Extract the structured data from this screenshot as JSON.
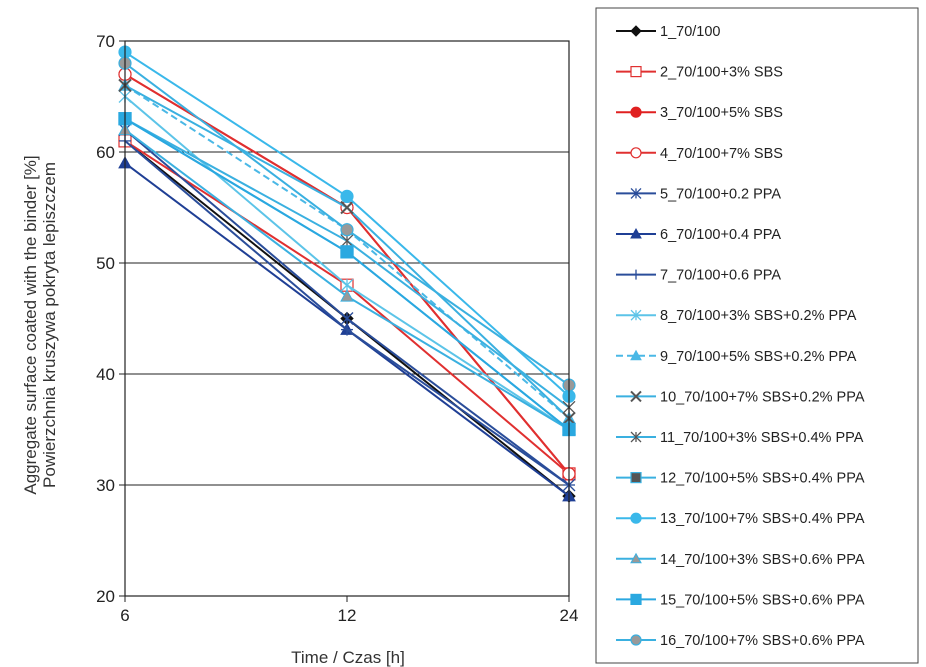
{
  "chart_data": {
    "type": "line",
    "xlabel": "Time / Czas [h]",
    "ylabel_lines": [
      "Aggregate surface coated with the binder [%]",
      "Powierzchnia kruszywa pokryta lepiszczem"
    ],
    "x": [
      6,
      12,
      24
    ],
    "x_tick_labels": [
      "6",
      "12",
      "24"
    ],
    "ylim": [
      20,
      70
    ],
    "y_ticks": [
      20,
      30,
      40,
      50,
      60,
      70
    ],
    "grid": "horizontal",
    "legend_position": "right",
    "series": [
      {
        "name": "1_70/100",
        "values": [
          61,
          45,
          29
        ],
        "color": "#111111",
        "marker": "diamond",
        "fill": "#111111",
        "dash": false
      },
      {
        "name": "2_70/100+3% SBS",
        "values": [
          61,
          48,
          31
        ],
        "color": "#e03030",
        "marker": "square",
        "fill": "#ffffff",
        "dash": false
      },
      {
        "name": "3_70/100+5% SBS",
        "values": [
          67,
          55,
          31
        ],
        "color": "#e02020",
        "marker": "circle",
        "fill": "#e02020",
        "dash": false
      },
      {
        "name": "4_70/100+7% SBS",
        "values": [
          67,
          55,
          31
        ],
        "color": "#e03030",
        "marker": "circle",
        "fill": "#ffffff",
        "dash": false
      },
      {
        "name": "5_70/100+0.2 PPA",
        "values": [
          62,
          45,
          30
        ],
        "color": "#2a4d9a",
        "marker": "asterisk",
        "fill": "#2a4d9a",
        "dash": false
      },
      {
        "name": "6_70/100+0.4 PPA",
        "values": [
          59,
          44,
          29
        ],
        "color": "#1f3f95",
        "marker": "triangle",
        "fill": "#1f3f95",
        "dash": false
      },
      {
        "name": "7_70/100+0.6 PPA",
        "values": [
          61,
          44,
          30
        ],
        "color": "#2a4d9a",
        "marker": "plus",
        "fill": "#2a4d9a",
        "dash": false
      },
      {
        "name": "8_70/100+3% SBS+0.2% PPA",
        "values": [
          65,
          48,
          35
        ],
        "color": "#5cc4e8",
        "marker": "asterisk",
        "fill": "#5cc4e8",
        "dash": false
      },
      {
        "name": "9_70/100+5% SBS+0.2% PPA",
        "values": [
          66,
          53,
          36
        ],
        "color": "#4ab8e6",
        "marker": "triangle",
        "fill": "#4ab8e6",
        "dash": true
      },
      {
        "name": "10_70/100+7% SBS+0.2% PPA",
        "values": [
          66,
          55,
          36
        ],
        "color": "#3ab0e0",
        "marker": "x",
        "fill": "#555555",
        "dash": false
      },
      {
        "name": "11_70/100+3% SBS+0.4% PPA",
        "values": [
          63,
          52,
          37
        ],
        "color": "#3ab0e0",
        "marker": "asterisk",
        "fill": "#555555",
        "dash": false
      },
      {
        "name": "12_70/100+5% SBS+0.4% PPA",
        "values": [
          63,
          51,
          35
        ],
        "color": "#3ab0e0",
        "marker": "square",
        "fill": "#555555",
        "dash": false
      },
      {
        "name": "13_70/100+7% SBS+0.4% PPA",
        "values": [
          69,
          56,
          38
        ],
        "color": "#3ab8ea",
        "marker": "circle",
        "fill": "#3ab8ea",
        "dash": false
      },
      {
        "name": "14_70/100+3% SBS+0.6% PPA",
        "values": [
          62,
          47,
          35
        ],
        "color": "#3ab0e0",
        "marker": "triangle",
        "fill": "#999999",
        "dash": false
      },
      {
        "name": "15_70/100+5% SBS+0.6% PPA",
        "values": [
          63,
          51,
          35
        ],
        "color": "#2aa8e0",
        "marker": "square",
        "fill": "#2aa8e0",
        "dash": false
      },
      {
        "name": "16_70/100+7% SBS+0.6% PPA",
        "values": [
          68,
          53,
          39
        ],
        "color": "#3ab0e0",
        "marker": "circle",
        "fill": "#999999",
        "dash": false
      }
    ]
  }
}
